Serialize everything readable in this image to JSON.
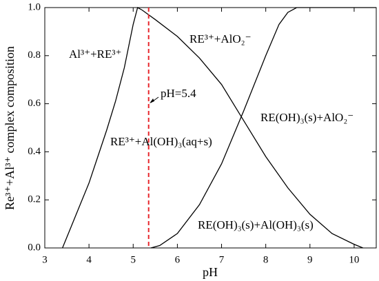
{
  "chart_data": {
    "type": "line",
    "x_label": "pH",
    "y_label": "Re³⁺+Al³⁺ complex composition",
    "xlim": [
      3,
      10.5
    ],
    "ylim": [
      0,
      1
    ],
    "xticks": [
      3,
      4,
      5,
      6,
      7,
      8,
      9,
      10
    ],
    "yticks": [
      {
        "value": 0,
        "label": "0.0"
      },
      0.2,
      0.4,
      0.6,
      0.8,
      {
        "value": 1,
        "label": "1.0"
      }
    ],
    "series": [
      {
        "color": "#000000",
        "x": [
          3.4,
          3.6,
          3.8,
          4.0,
          4.2,
          4.4,
          4.6,
          4.8,
          5.0,
          5.1,
          5.2,
          5.5,
          6.0,
          6.5,
          7.0,
          7.5,
          8.0,
          8.5,
          9.0,
          9.5,
          10.0,
          10.2
        ],
        "values": [
          0,
          0.09,
          0.18,
          0.27,
          0.38,
          0.49,
          0.61,
          0.75,
          0.93,
          1.0,
          0.99,
          0.95,
          0.88,
          0.79,
          0.68,
          0.53,
          0.38,
          0.25,
          0.14,
          0.06,
          0.015,
          0
        ]
      },
      {
        "color": "#000000",
        "x": [
          5.4,
          5.6,
          6.0,
          6.5,
          7.0,
          7.5,
          8.0,
          8.3,
          8.5,
          8.7,
          10.5
        ],
        "values": [
          0,
          0.01,
          0.06,
          0.18,
          0.35,
          0.57,
          0.8,
          0.93,
          0.98,
          1.0,
          1.0
        ]
      }
    ],
    "reference_line": {
      "x": 5.35,
      "color": "#e8262b"
    },
    "annotations": [
      "Al³⁺+RE³⁺",
      "RE³⁺+AlO₂⁻",
      "pH=5.4",
      "RE(OH)₃(s)+AlO₂⁻",
      "RE³⁺+Al(OH)₃(aq+s)",
      "RE(OH)₃(s)+Al(OH)₃(s)"
    ]
  }
}
